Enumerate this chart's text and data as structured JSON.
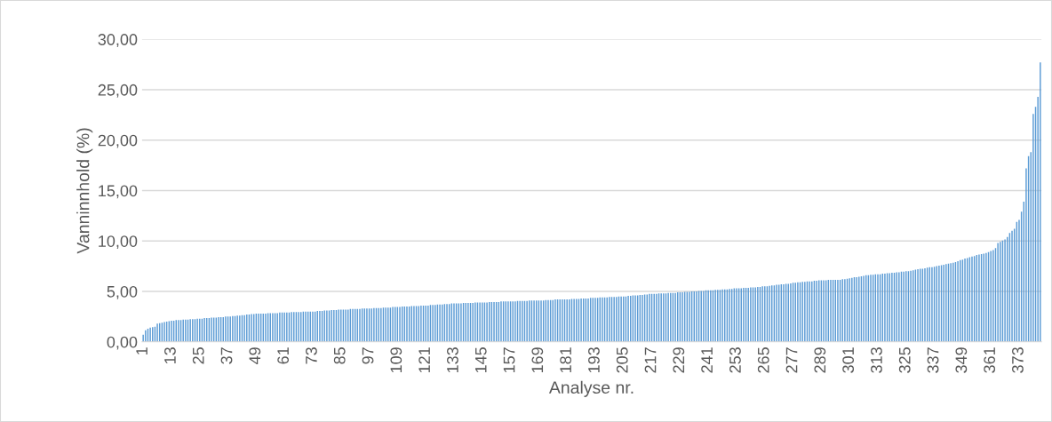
{
  "chart_data": {
    "type": "bar",
    "xlabel": "Analyse nr.",
    "ylabel": "Vanninnhold (%)",
    "color": "#5b9bd5",
    "ylim": [
      0,
      30
    ],
    "yticks": [
      {
        "value": 0,
        "label": "0,00"
      },
      {
        "value": 5,
        "label": "5,00"
      },
      {
        "value": 10,
        "label": "10,00"
      },
      {
        "value": 15,
        "label": "15,00"
      },
      {
        "value": 20,
        "label": "20,00"
      },
      {
        "value": 25,
        "label": "25,00"
      },
      {
        "value": 30,
        "label": "30,00"
      }
    ],
    "grid": "y",
    "legend": false,
    "categories": [
      "1",
      null,
      null,
      null,
      null,
      null,
      null,
      null,
      null,
      null,
      null,
      null,
      "13",
      null,
      null,
      null,
      null,
      null,
      null,
      null,
      null,
      null,
      null,
      null,
      "25",
      null,
      null,
      null,
      null,
      null,
      null,
      null,
      null,
      null,
      null,
      null,
      "37",
      null,
      null,
      null,
      null,
      null,
      null,
      null,
      null,
      null,
      null,
      null,
      "49",
      null,
      null,
      null,
      null,
      null,
      null,
      null,
      null,
      null,
      null,
      null,
      "61",
      null,
      null,
      null,
      null,
      null,
      null,
      null,
      null,
      null,
      null,
      null,
      "73",
      null,
      null,
      null,
      null,
      null,
      null,
      null,
      null,
      null,
      null,
      null,
      "85",
      null,
      null,
      null,
      null,
      null,
      null,
      null,
      null,
      null,
      null,
      null,
      "97",
      null,
      null,
      null,
      null,
      null,
      null,
      null,
      null,
      null,
      null,
      null,
      "109",
      null,
      null,
      null,
      null,
      null,
      null,
      null,
      null,
      null,
      null,
      null,
      "121",
      null,
      null,
      null,
      null,
      null,
      null,
      null,
      null,
      null,
      null,
      null,
      "133",
      null,
      null,
      null,
      null,
      null,
      null,
      null,
      null,
      null,
      null,
      null,
      "145",
      null,
      null,
      null,
      null,
      null,
      null,
      null,
      null,
      null,
      null,
      null,
      "157",
      null,
      null,
      null,
      null,
      null,
      null,
      null,
      null,
      null,
      null,
      null,
      "169",
      null,
      null,
      null,
      null,
      null,
      null,
      null,
      null,
      null,
      null,
      null,
      "181",
      null,
      null,
      null,
      null,
      null,
      null,
      null,
      null,
      null,
      null,
      null,
      "193",
      null,
      null,
      null,
      null,
      null,
      null,
      null,
      null,
      null,
      null,
      null,
      "205",
      null,
      null,
      null,
      null,
      null,
      null,
      null,
      null,
      null,
      null,
      null,
      "217",
      null,
      null,
      null,
      null,
      null,
      null,
      null,
      null,
      null,
      null,
      null,
      "229",
      null,
      null,
      null,
      null,
      null,
      null,
      null,
      null,
      null,
      null,
      null,
      "241",
      null,
      null,
      null,
      null,
      null,
      null,
      null,
      null,
      null,
      null,
      null,
      "253",
      null,
      null,
      null,
      null,
      null,
      null,
      null,
      null,
      null,
      null,
      null,
      "265",
      null,
      null,
      null,
      null,
      null,
      null,
      null,
      null,
      null,
      null,
      null,
      "277",
      null,
      null,
      null,
      null,
      null,
      null,
      null,
      null,
      null,
      null,
      null,
      "289",
      null,
      null,
      null,
      null,
      null,
      null,
      null,
      null,
      null,
      null,
      null,
      "301",
      null,
      null,
      null,
      null,
      null,
      null,
      null,
      null,
      null,
      null,
      null,
      "313",
      null,
      null,
      null,
      null,
      null,
      null,
      null,
      null,
      null,
      null,
      null,
      "325",
      null,
      null,
      null,
      null,
      null,
      null,
      null,
      null,
      null,
      null,
      null,
      "337",
      null,
      null,
      null,
      null,
      null,
      null,
      null,
      null,
      null,
      null,
      null,
      "349",
      null,
      null,
      null,
      null,
      null,
      null,
      null,
      null,
      null,
      null,
      null,
      "361",
      null,
      null,
      null,
      null,
      null,
      null,
      null,
      null,
      null,
      null,
      null,
      "373",
      null,
      null,
      null,
      null,
      null,
      null,
      null,
      null,
      null
    ],
    "values": [
      0.7,
      1.15,
      1.3,
      1.4,
      1.45,
      1.5,
      1.8,
      1.85,
      1.9,
      1.95,
      2.0,
      2.05,
      2.1,
      2.1,
      2.15,
      2.15,
      2.15,
      2.2,
      2.2,
      2.2,
      2.25,
      2.25,
      2.25,
      2.3,
      2.3,
      2.3,
      2.35,
      2.35,
      2.35,
      2.4,
      2.4,
      2.4,
      2.45,
      2.45,
      2.45,
      2.5,
      2.5,
      2.5,
      2.55,
      2.55,
      2.6,
      2.6,
      2.65,
      2.65,
      2.7,
      2.7,
      2.75,
      2.75,
      2.8,
      2.8,
      2.8,
      2.8,
      2.8,
      2.85,
      2.85,
      2.85,
      2.85,
      2.85,
      2.9,
      2.9,
      2.9,
      2.9,
      2.9,
      2.95,
      2.95,
      2.95,
      2.95,
      2.95,
      3.0,
      3.0,
      3.0,
      3.0,
      3.0,
      3.0,
      3.05,
      3.05,
      3.05,
      3.1,
      3.1,
      3.1,
      3.15,
      3.15,
      3.15,
      3.2,
      3.2,
      3.2,
      3.2,
      3.2,
      3.25,
      3.25,
      3.25,
      3.25,
      3.25,
      3.3,
      3.3,
      3.3,
      3.3,
      3.3,
      3.35,
      3.35,
      3.35,
      3.35,
      3.4,
      3.4,
      3.4,
      3.4,
      3.45,
      3.45,
      3.45,
      3.45,
      3.5,
      3.5,
      3.5,
      3.5,
      3.55,
      3.55,
      3.55,
      3.55,
      3.6,
      3.6,
      3.6,
      3.6,
      3.65,
      3.65,
      3.65,
      3.7,
      3.7,
      3.7,
      3.75,
      3.75,
      3.75,
      3.8,
      3.8,
      3.8,
      3.8,
      3.8,
      3.85,
      3.85,
      3.85,
      3.85,
      3.85,
      3.9,
      3.9,
      3.9,
      3.9,
      3.9,
      3.9,
      3.95,
      3.95,
      3.95,
      3.95,
      3.95,
      4.0,
      4.0,
      4.0,
      4.0,
      4.0,
      4.0,
      4.0,
      4.05,
      4.05,
      4.05,
      4.05,
      4.05,
      4.1,
      4.1,
      4.1,
      4.1,
      4.1,
      4.1,
      4.1,
      4.15,
      4.15,
      4.15,
      4.15,
      4.2,
      4.2,
      4.2,
      4.2,
      4.2,
      4.2,
      4.2,
      4.25,
      4.25,
      4.25,
      4.25,
      4.3,
      4.3,
      4.3,
      4.3,
      4.35,
      4.35,
      4.35,
      4.35,
      4.4,
      4.4,
      4.4,
      4.4,
      4.45,
      4.45,
      4.45,
      4.45,
      4.5,
      4.5,
      4.5,
      4.5,
      4.55,
      4.55,
      4.6,
      4.6,
      4.6,
      4.65,
      4.65,
      4.7,
      4.7,
      4.75,
      4.75,
      4.75,
      4.75,
      4.8,
      4.8,
      4.8,
      4.8,
      4.85,
      4.85,
      4.85,
      4.85,
      4.9,
      4.9,
      4.9,
      4.95,
      4.95,
      4.95,
      5.0,
      5.0,
      5.0,
      5.05,
      5.05,
      5.05,
      5.1,
      5.1,
      5.1,
      5.1,
      5.15,
      5.15,
      5.15,
      5.2,
      5.2,
      5.2,
      5.25,
      5.25,
      5.3,
      5.3,
      5.3,
      5.3,
      5.35,
      5.35,
      5.35,
      5.4,
      5.4,
      5.4,
      5.45,
      5.45,
      5.5,
      5.5,
      5.5,
      5.55,
      5.6,
      5.6,
      5.65,
      5.65,
      5.7,
      5.7,
      5.75,
      5.75,
      5.8,
      5.85,
      5.85,
      5.9,
      5.9,
      5.95,
      5.95,
      6.0,
      6.0,
      6.0,
      6.05,
      6.05,
      6.1,
      6.1,
      6.1,
      6.1,
      6.15,
      6.15,
      6.15,
      6.15,
      6.15,
      6.15,
      6.2,
      6.2,
      6.25,
      6.3,
      6.35,
      6.4,
      6.4,
      6.45,
      6.5,
      6.55,
      6.6,
      6.6,
      6.65,
      6.65,
      6.7,
      6.7,
      6.7,
      6.75,
      6.75,
      6.8,
      6.8,
      6.85,
      6.85,
      6.9,
      6.9,
      6.95,
      6.95,
      7.0,
      7.0,
      7.05,
      7.1,
      7.15,
      7.2,
      7.25,
      7.25,
      7.3,
      7.35,
      7.4,
      7.4,
      7.45,
      7.5,
      7.55,
      7.6,
      7.65,
      7.7,
      7.75,
      7.8,
      7.85,
      7.9,
      8.0,
      8.1,
      8.15,
      8.25,
      8.3,
      8.4,
      8.45,
      8.5,
      8.6,
      8.65,
      8.7,
      8.75,
      8.8,
      8.9,
      9.0,
      9.1,
      9.3,
      9.8,
      9.9,
      10.05,
      10.15,
      10.4,
      10.8,
      11.0,
      11.2,
      11.9,
      12.1,
      12.9,
      13.9,
      17.2,
      18.4,
      18.8,
      22.6,
      23.3,
      24.3,
      27.7
    ]
  }
}
